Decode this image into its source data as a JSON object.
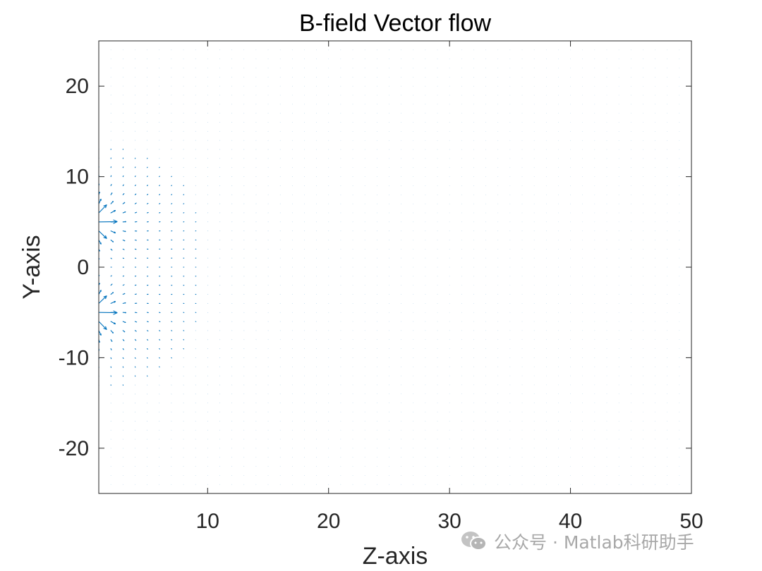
{
  "chart_data": {
    "type": "quiver",
    "title": "B-field Vector flow",
    "xlabel": "Z-axis",
    "ylabel": "Y-axis",
    "xlim": [
      1,
      50
    ],
    "ylim": [
      -25,
      25
    ],
    "xticks": [
      10,
      20,
      30,
      40,
      50
    ],
    "yticks": [
      -20,
      -10,
      0,
      10,
      20
    ],
    "grid": false,
    "box": true,
    "field_grid": {
      "z_start": 1,
      "z_end": 50,
      "z_step": 1,
      "y_start": -24,
      "y_end": 24,
      "y_step": 1
    },
    "dipole_sources": [
      {
        "z": 0,
        "y": 5
      },
      {
        "z": 0,
        "y": -5
      }
    ],
    "color": "#0072bd"
  },
  "watermark": {
    "text": "公众号 · Matlab科研助手"
  }
}
